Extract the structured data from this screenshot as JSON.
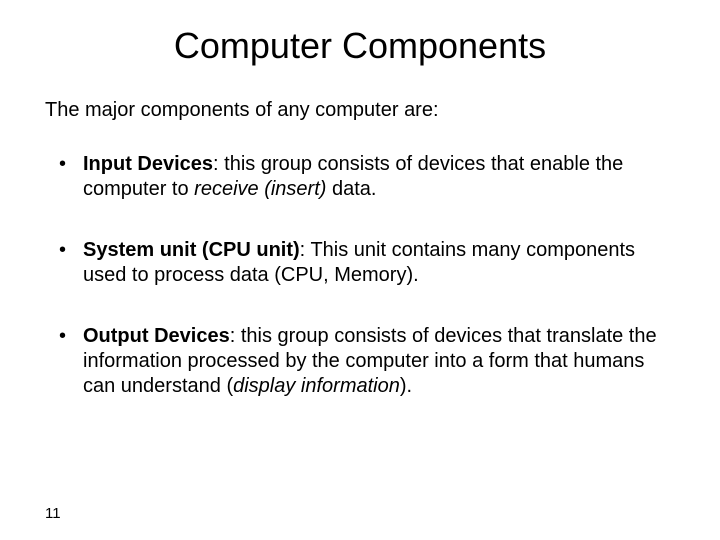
{
  "slide": {
    "title": "Computer Components",
    "intro": "The major components of any computer are:",
    "bullets": [
      {
        "term": "Input Devices",
        "colon": ": ",
        "text_a": "this group consists of devices that enable the computer to ",
        "emph": "receive (insert)",
        "text_b": " data."
      },
      {
        "term": "System unit (CPU unit)",
        "colon": ": ",
        "text_a": "This unit contains many components used to process data (CPU, Memory).",
        "emph": "",
        "text_b": ""
      },
      {
        "term": "Output Devices",
        "colon": ": ",
        "text_a": "this group consists of devices that translate the information processed by the computer into a form that humans can understand (",
        "emph": "display information",
        "text_b": ")."
      }
    ],
    "page_number": "11"
  },
  "styles": {
    "background_color": "#ffffff",
    "text_color": "#000000",
    "title_fontsize": 36,
    "body_fontsize": 20,
    "pagenum_fontsize": 15,
    "font_family": "Arial"
  }
}
